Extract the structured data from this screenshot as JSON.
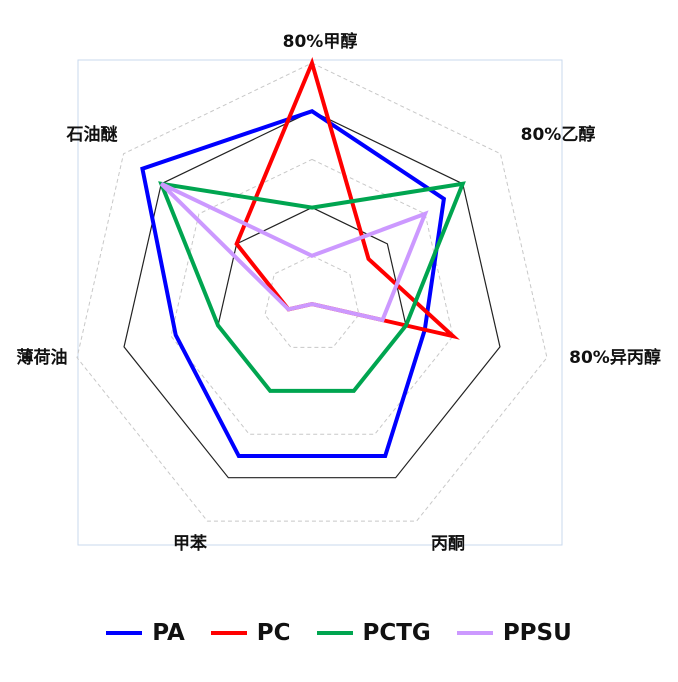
{
  "chart_data": {
    "type": "radar",
    "title": "",
    "axes": [
      "80%甲醇",
      "80%乙醇",
      "80%异丙醇",
      "丙酮",
      "甲苯",
      "薄荷油",
      "石油醚"
    ],
    "range": [
      0,
      5
    ],
    "rings": 5,
    "grid": true,
    "legend_position": "bottom",
    "series": [
      {
        "name": "PA",
        "color": "#0000ff",
        "values": [
          4,
          3.5,
          2.4,
          3.5,
          3.5,
          2.9,
          4.5
        ]
      },
      {
        "name": "PC",
        "color": "#ff0000",
        "values": [
          5,
          1.5,
          3,
          0,
          0,
          0.5,
          2
        ]
      },
      {
        "name": "PCTG",
        "color": "#00a550",
        "values": [
          2,
          4,
          2,
          2,
          2,
          2,
          4
        ]
      },
      {
        "name": "PPSU",
        "color": "#cc99ff",
        "values": [
          1,
          3,
          1.5,
          0,
          0,
          0.5,
          4
        ]
      }
    ]
  }
}
